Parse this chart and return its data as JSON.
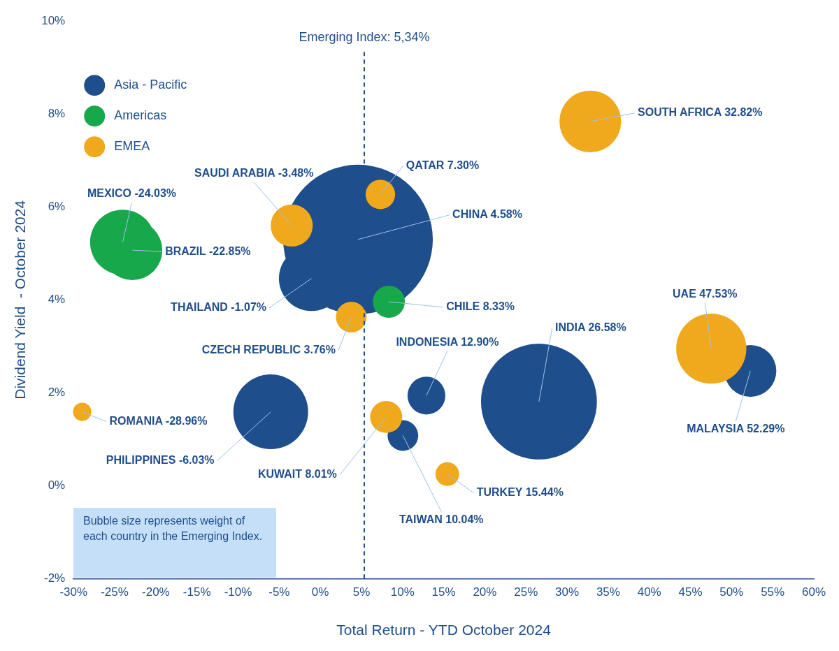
{
  "chart_data": {
    "type": "bubble",
    "xlabel": "Total Return - YTD October 2024",
    "ylabel": "Dividend Yield  - October 2024",
    "xlim": [
      -30,
      60
    ],
    "xticks": [
      {
        "value": -30,
        "label": "-30%"
      },
      {
        "value": -25,
        "label": "-25%"
      },
      {
        "value": -20,
        "label": "-20%"
      },
      {
        "value": -15,
        "label": "-15%"
      },
      {
        "value": -10,
        "label": "-10%"
      },
      {
        "value": -5,
        "label": "-5%"
      },
      {
        "value": 0,
        "label": "0%"
      },
      {
        "value": 5,
        "label": "5%"
      },
      {
        "value": 10,
        "label": "10%"
      },
      {
        "value": 15,
        "label": "15%"
      },
      {
        "value": 20,
        "label": "20%"
      },
      {
        "value": 25,
        "label": "25%"
      },
      {
        "value": 30,
        "label": "30%"
      },
      {
        "value": 35,
        "label": "35%"
      },
      {
        "value": 40,
        "label": "40%"
      },
      {
        "value": 45,
        "label": "45%"
      },
      {
        "value": 50,
        "label": "50%"
      },
      {
        "value": 55,
        "label": "55%"
      },
      {
        "value": 60,
        "label": "60%"
      }
    ],
    "ylim": [
      -2,
      10
    ],
    "yticks": [
      {
        "value": -2,
        "label": "-2%"
      },
      {
        "value": 0,
        "label": "0%"
      },
      {
        "value": 2,
        "label": "2%"
      },
      {
        "value": 4,
        "label": "4%"
      },
      {
        "value": 6,
        "label": "6%"
      },
      {
        "value": 8,
        "label": "8%"
      },
      {
        "value": 10,
        "label": "10%"
      }
    ],
    "grid": false,
    "legend": "top left",
    "series": [
      {
        "name": "Asia - Pacific",
        "color": "#1f4e8c",
        "x": [
          4.58,
          26.58,
          -1.07,
          -6.03,
          52.29,
          12.9,
          10.04
        ],
        "values": [
          5.3,
          1.81,
          4.46,
          1.59,
          2.47,
          1.94,
          1.08
        ],
        "sizes": [
          1,
          0.6,
          0.19,
          0.25,
          0.12,
          0.064,
          0.042
        ]
      },
      {
        "name": "Americas",
        "color": "#16a84a",
        "x": [
          -24.03,
          -22.85,
          8.33
        ],
        "values": [
          5.24,
          5.07,
          3.96
        ],
        "sizes": [
          0.19,
          0.16,
          0.046
        ]
      },
      {
        "name": "EMEA",
        "color": "#f0a81c",
        "x": [
          32.82,
          7.3,
          -3.48,
          3.76,
          47.53,
          -28.96,
          8.01,
          15.44
        ],
        "values": [
          7.84,
          6.27,
          5.6,
          3.63,
          2.95,
          1.59,
          1.48,
          0.25
        ],
        "sizes": [
          0.17,
          0.039,
          0.079,
          0.042,
          0.22,
          0.015,
          0.046,
          0.025
        ]
      }
    ],
    "ref_lines": [
      {
        "axis": "x",
        "value": 5.34,
        "label": "Emerging Index: 5,34%",
        "color": "#1f4e8c",
        "line_style": "dashed"
      }
    ],
    "annotations": [
      "Bubble size represents weight of each country in the Emerging Index.",
      {
        "text": "CHINA 4.58%",
        "x": 4.58,
        "y": 5.3
      },
      {
        "text": "INDIA 26.58%",
        "x": 26.58,
        "y": 1.81
      },
      {
        "text": "THAILAND -1.07%",
        "x": -1.07,
        "y": 4.46
      },
      {
        "text": "PHILIPPINES -6.03%",
        "x": -6.03,
        "y": 1.59
      },
      {
        "text": "MALAYSIA 52.29%",
        "x": 52.29,
        "y": 2.47
      },
      {
        "text": "INDONESIA 12.90%",
        "x": 12.9,
        "y": 1.94
      },
      {
        "text": "TAIWAN 10.04%",
        "x": 10.04,
        "y": 1.08
      },
      {
        "text": "MEXICO -24.03%",
        "x": -24.03,
        "y": 5.24
      },
      {
        "text": "BRAZIL -22.85%",
        "x": -22.85,
        "y": 5.07
      },
      {
        "text": "CHILE 8.33%",
        "x": 8.33,
        "y": 3.96
      },
      {
        "text": "SOUTH AFRICA 32.82%",
        "x": 32.82,
        "y": 7.84
      },
      {
        "text": "QATAR 7.30%",
        "x": 7.3,
        "y": 6.27
      },
      {
        "text": "SAUDI ARABIA -3.48%",
        "x": -3.48,
        "y": 5.6
      },
      {
        "text": "CZECH REPUBLIC 3.76%",
        "x": 3.76,
        "y": 3.63
      },
      {
        "text": "UAE 47.53%",
        "x": 47.53,
        "y": 2.95
      },
      {
        "text": "ROMANIA -28.96%",
        "x": -28.96,
        "y": 1.59
      },
      {
        "text": "KUWAIT 8.01%",
        "x": 8.01,
        "y": 1.48
      },
      {
        "text": "TURKEY 15.44%",
        "x": 15.44,
        "y": 0.25
      }
    ]
  }
}
